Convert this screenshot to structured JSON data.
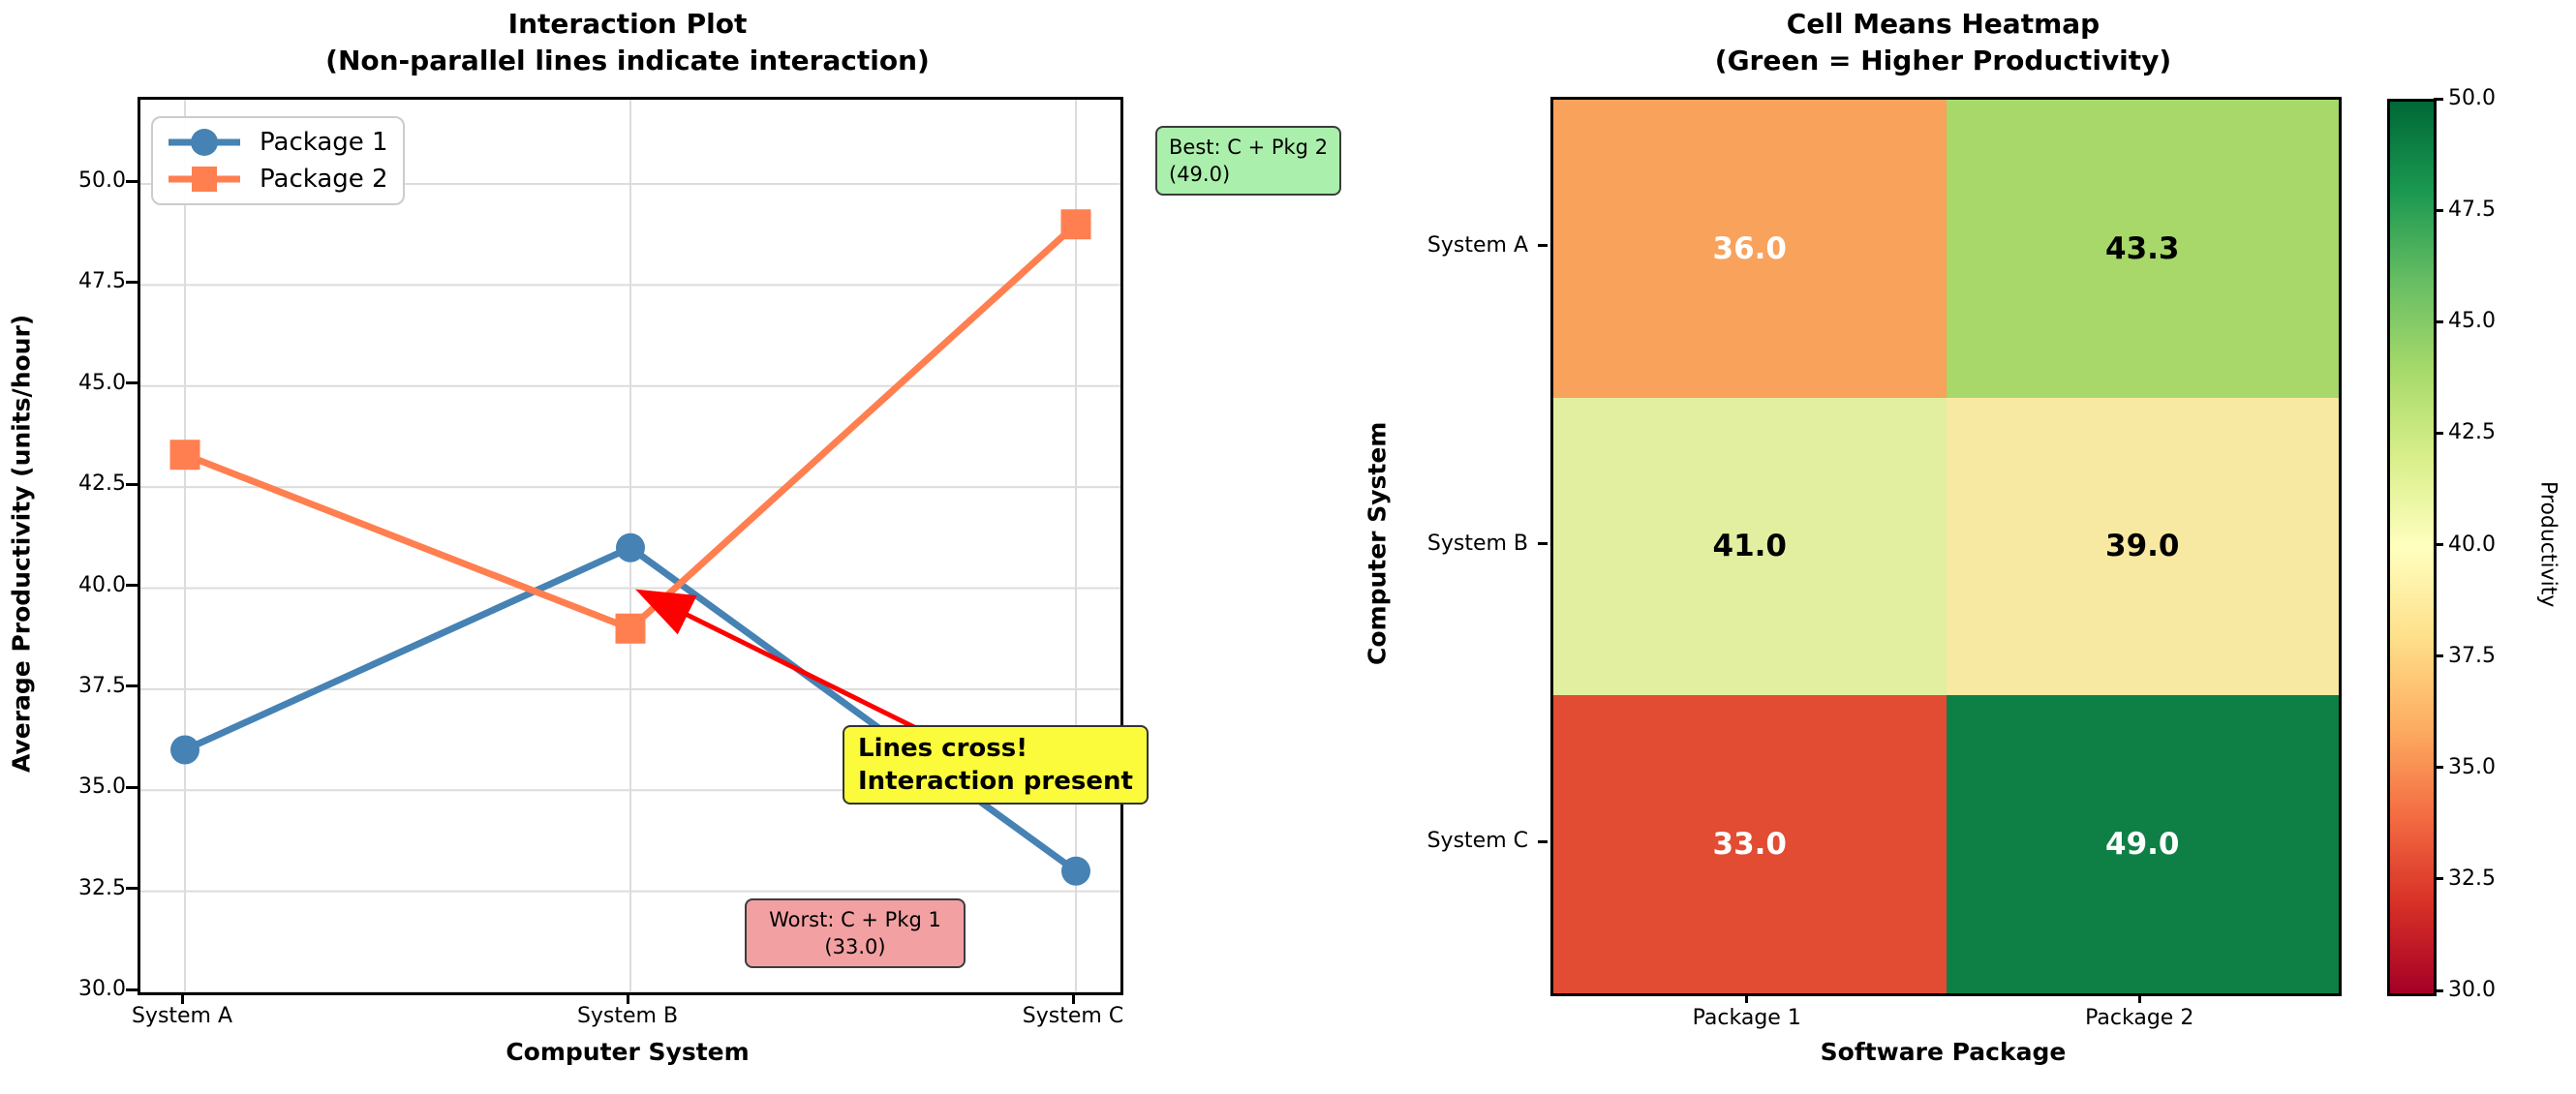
{
  "chart_data": [
    {
      "type": "line",
      "title": "Interaction Plot\n(Non-parallel lines indicate interaction)",
      "title_line1": "Interaction Plot",
      "title_line2": "(Non-parallel lines indicate interaction)",
      "xlabel": "Computer System",
      "ylabel": "Average Productivity (units/hour)",
      "categories": [
        "System A",
        "System B",
        "System C"
      ],
      "series": [
        {
          "name": "Package 1",
          "marker": "circle",
          "color": "#4682B4",
          "values": [
            36.0,
            41.0,
            33.0
          ]
        },
        {
          "name": "Package 2",
          "marker": "square",
          "color": "#FF7F50",
          "values": [
            43.3,
            39.0,
            49.0
          ]
        }
      ],
      "ylim": [
        30,
        52.1
      ],
      "yticks": [
        30.0,
        32.5,
        35.0,
        37.5,
        40.0,
        42.5,
        45.0,
        47.5,
        50.0
      ],
      "ytick_labels": [
        "30.0",
        "32.5",
        "35.0",
        "37.5",
        "40.0",
        "42.5",
        "45.0",
        "47.5",
        "50.0"
      ],
      "grid": true,
      "legend_position": "upper left",
      "annotations": {
        "best": {
          "line1": "Best: C + Pkg 2",
          "line2": "(49.0)",
          "bg_color": "#abefac"
        },
        "worst": {
          "line1": "Worst: C + Pkg 1",
          "line2": "(33.0)",
          "bg_color": "#f2a0a2"
        },
        "cross": {
          "line1": "Lines cross!",
          "line2": "Interaction present",
          "bg_color": "#fbfb3c",
          "arrow_color": "#ff0000"
        }
      }
    },
    {
      "type": "heatmap",
      "title": "Cell Means Heatmap\n(Green = Higher Productivity)",
      "title_line1": "Cell Means Heatmap",
      "title_line2": "(Green = Higher Productivity)",
      "xlabel": "Software Package",
      "ylabel": "Computer System",
      "columns": [
        "Package 1",
        "Package 2"
      ],
      "rows": [
        "System A",
        "System B",
        "System C"
      ],
      "values": [
        [
          36.0,
          43.3
        ],
        [
          41.0,
          39.0
        ],
        [
          33.0,
          49.0
        ]
      ],
      "cell_labels": [
        [
          "36.0",
          "43.3"
        ],
        [
          "41.0",
          "39.0"
        ],
        [
          "33.0",
          "49.0"
        ]
      ],
      "cell_colors": [
        [
          "#f9a25c",
          "#a7d869"
        ],
        [
          "#e2efa1",
          "#f8e9a2"
        ],
        [
          "#e14c32",
          "#0e8046"
        ]
      ],
      "cell_text_colors": [
        [
          "#ffffff",
          "#000000"
        ],
        [
          "#000000",
          "#000000"
        ],
        [
          "#ffffff",
          "#ffffff"
        ]
      ],
      "colorbar": {
        "label": "Productivity",
        "vmin": 30,
        "vmax": 50,
        "tick_labels_top_to_bottom": [
          "50.0",
          "47.5",
          "45.0",
          "42.5",
          "40.0",
          "37.5",
          "35.0",
          "32.5",
          "30.0"
        ],
        "colormap": "RdYlGn",
        "colormap_stops_bottom_to_top": [
          "#a50026",
          "#d73027",
          "#f46d43",
          "#fdae61",
          "#fee08b",
          "#ffffbf",
          "#d9ef8b",
          "#a6d96a",
          "#66bd63",
          "#1a9850",
          "#006837"
        ]
      }
    }
  ]
}
